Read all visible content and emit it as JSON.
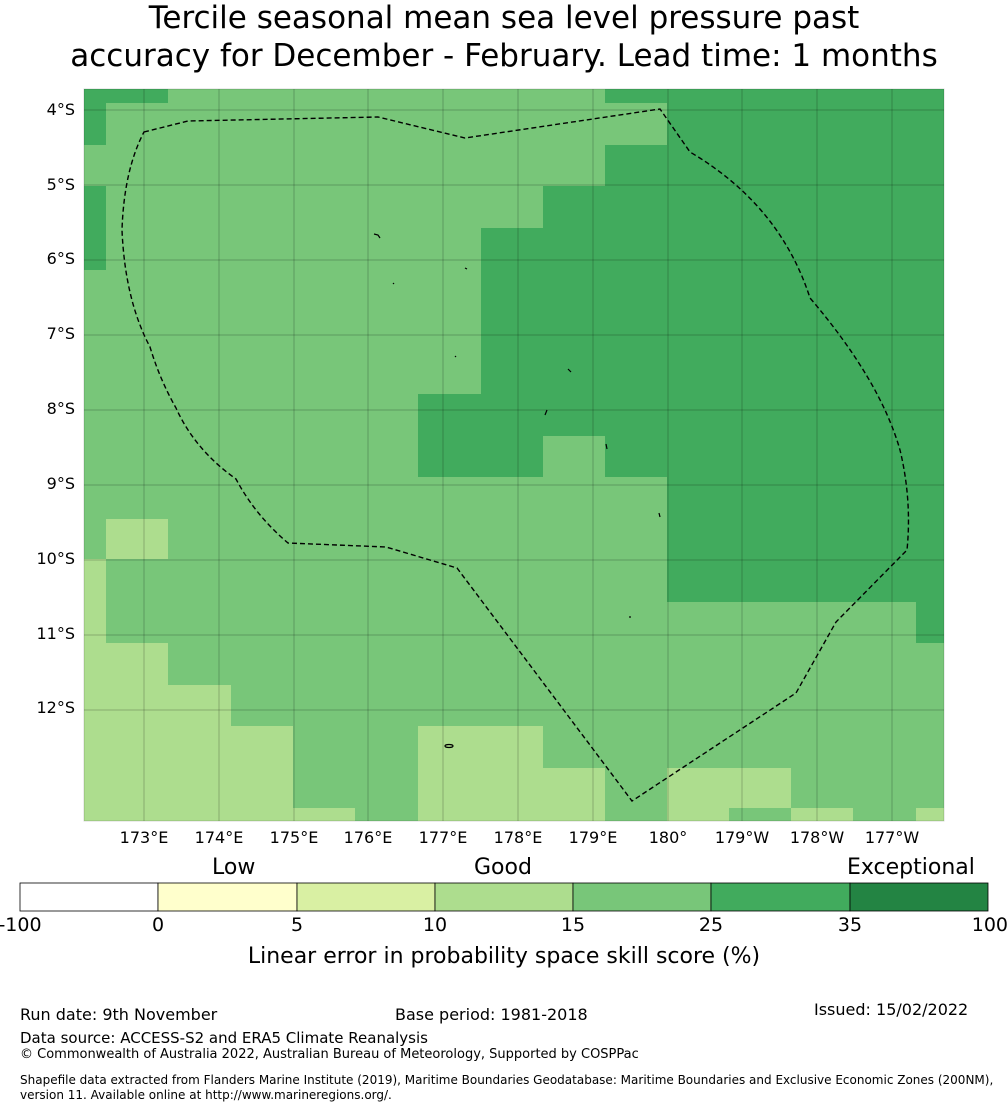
{
  "title": {
    "line1": "Tercile seasonal mean sea level pressure past",
    "line2": "accuracy for December - February. Lead time: 1 months"
  },
  "map": {
    "lat_labels": [
      "4°S",
      "5°S",
      "6°S",
      "7°S",
      "8°S",
      "9°S",
      "10°S",
      "11°S",
      "12°S"
    ],
    "lon_labels": [
      "173°E",
      "174°E",
      "175°E",
      "176°E",
      "177°E",
      "178°E",
      "179°E",
      "180°",
      "179°W",
      "178°W",
      "177°W"
    ],
    "extent": {
      "lon_min": 172.2,
      "lon_max": 183.7,
      "lat_min": -13.45,
      "lat_max": -3.7
    },
    "colors": {
      "c5_10": "#b0de91",
      "c10_15": "#d9f0a3",
      "c15_25": "#78c679",
      "c25_35": "#41ab5d",
      "c35_100": "#238443"
    }
  },
  "colorbar": {
    "categories": [
      "Low",
      "Good",
      "Exceptional"
    ],
    "ticks": [
      "-100",
      "0",
      "5",
      "10",
      "15",
      "25",
      "35",
      "100"
    ],
    "colors": [
      "#ffffff",
      "#ffffcc",
      "#d9f0a3",
      "#addd8e",
      "#78c679",
      "#41ab5d",
      "#238443"
    ],
    "label": "Linear error in probability space skill score (%)"
  },
  "footer": {
    "run_date": "Run date: 9th November",
    "base_period": "Base period: 1981-2018",
    "issued": "Issued: 15/02/2022",
    "data_source": "Data source: ACCESS-S2 and ERA5 Climate Reanalysis",
    "copyright": "© Commonwealth of Australia 2022, Australian Bureau of Meteorology, Supported by COSPPac",
    "shapefile": "Shapefile data extracted from Flanders Marine Institute (2019), Maritime Boundaries Geodatabase: Maritime Boundaries and Exclusive Economic Zones (200NM), version 11. Available online at http://www.marineregions.org/."
  }
}
